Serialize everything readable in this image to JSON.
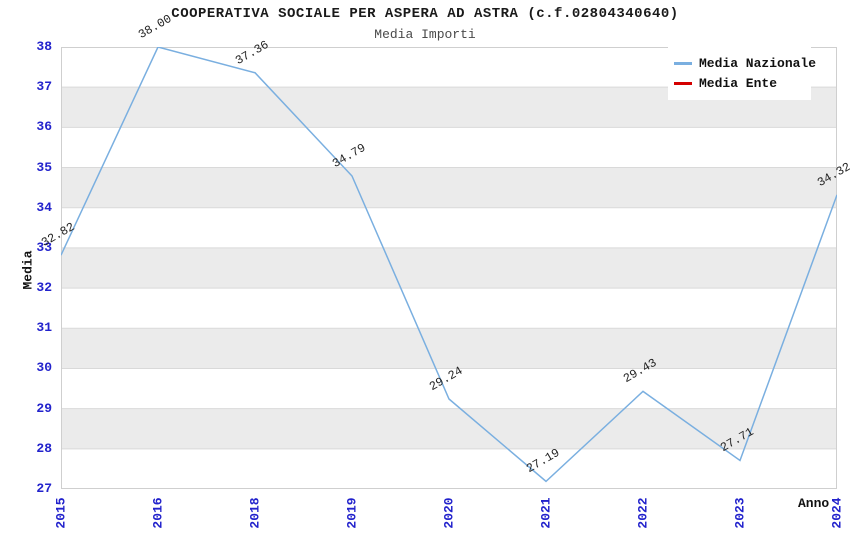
{
  "title": "COOPERATIVA SOCIALE PER ASPERA AD ASTRA (c.f.02804340640)",
  "subtitle": "Media Importi",
  "chart_data": {
    "type": "line",
    "x": [
      "2015",
      "2016",
      "2018",
      "2019",
      "2020",
      "2021",
      "2022",
      "2023",
      "2024"
    ],
    "series": [
      {
        "name": "Media Nazionale",
        "color": "#7aafe0",
        "values": [
          32.82,
          38.0,
          37.36,
          34.79,
          29.24,
          27.19,
          29.43,
          27.71,
          34.32
        ],
        "point_labels": [
          "32.82",
          "38.00",
          "37.36",
          "34.79",
          "29.24",
          "27.19",
          "29.43",
          "27.71",
          "34.32"
        ]
      },
      {
        "name": "Media Ente",
        "color": "#d40000",
        "values": [],
        "point_labels": []
      }
    ],
    "xlabel": "Anno",
    "ylabel": "Media",
    "ylim": [
      27,
      38
    ],
    "yticks": [
      27,
      28,
      29,
      30,
      31,
      32,
      33,
      34,
      35,
      36,
      37,
      38
    ],
    "grid": true,
    "legend_position": "top-right",
    "band_colors": [
      "#ffffff",
      "#ebebeb"
    ],
    "gridline_color": "#d9d9d9",
    "spine_color": "#cfcfcf",
    "tick_label_color": "#2222cc"
  }
}
